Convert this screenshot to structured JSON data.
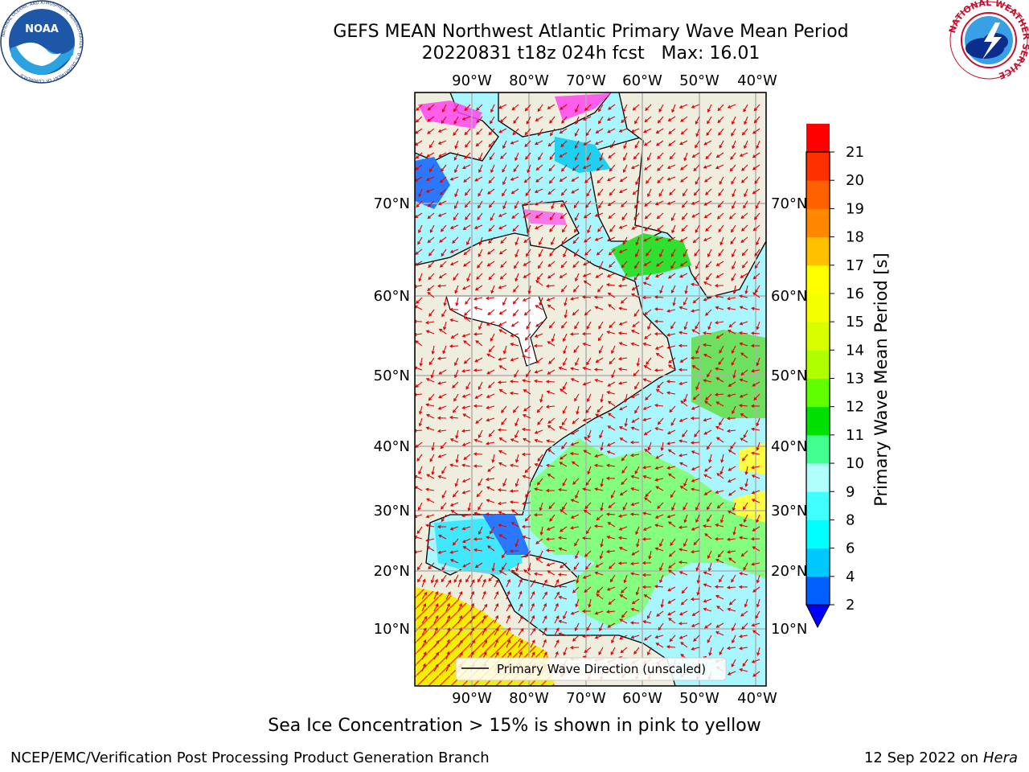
{
  "header": {
    "title_line1": "GEFS MEAN Northwest Atlantic Primary Wave Mean Period",
    "title_line2": "20220831 t18z 024h fcst   Max: 16.01"
  },
  "logos": {
    "left": {
      "text": "NOAA",
      "ring_text": "NATIONAL OCEANIC AND ATMOSPHERIC ADMINISTRATION · U.S. DEPARTMENT OF COMMERCE"
    },
    "right": {
      "ring_text": "NATIONAL WEATHER SERVICE"
    }
  },
  "map": {
    "lon_labels": [
      "90°W",
      "80°W",
      "70°W",
      "60°W",
      "50°W",
      "40°W"
    ],
    "lat_labels": [
      "70°N",
      "60°N",
      "50°N",
      "40°N",
      "30°N",
      "20°N",
      "10°N"
    ],
    "legend_label": "Primary Wave Direction (unscaled)",
    "colors": {
      "land": "#efedde",
      "grid": "#b0b0b0",
      "arrow": "#e00000",
      "sea_ice": "#ff44ee",
      "no_data": "#ffffff"
    }
  },
  "colorbar": {
    "label": "Primary Wave Mean Period [s]",
    "ticks": [
      "2",
      "4",
      "6",
      "8",
      "9",
      "10",
      "11",
      "12",
      "13",
      "14",
      "15",
      "16",
      "17",
      "18",
      "19",
      "20",
      "21"
    ],
    "colors": [
      "#0060ff",
      "#00c8ff",
      "#00ffff",
      "#40ffff",
      "#b0ffff",
      "#40ff90",
      "#00e000",
      "#60ff00",
      "#b0ff00",
      "#d8ff00",
      "#f4ff00",
      "#ffff00",
      "#ffc000",
      "#ff8800",
      "#ff6000",
      "#ff3000",
      "#ff0000"
    ],
    "extend_below_color": "#0000ff"
  },
  "notes": {
    "sea_ice": "Sea Ice Concentration > 15% is shown in pink to yellow"
  },
  "footer": {
    "left": "NCEP/EMC/Verification Post Processing Product Generation Branch",
    "date": "12 Sep 2022 on",
    "host": "Hera"
  }
}
